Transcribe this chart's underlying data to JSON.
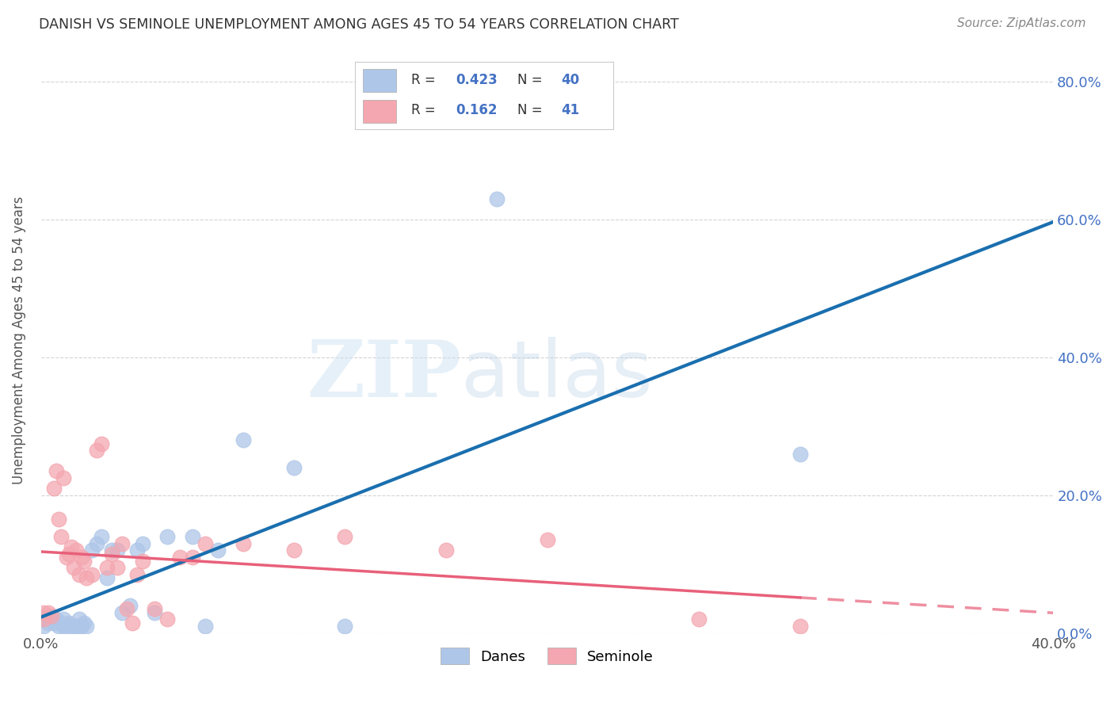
{
  "title": "DANISH VS SEMINOLE UNEMPLOYMENT AMONG AGES 45 TO 54 YEARS CORRELATION CHART",
  "source": "Source: ZipAtlas.com",
  "ylabel": "Unemployment Among Ages 45 to 54 years",
  "xlim": [
    0.0,
    0.4
  ],
  "ylim": [
    0.0,
    0.85
  ],
  "xticks": [
    0.0,
    0.05,
    0.1,
    0.15,
    0.2,
    0.25,
    0.3,
    0.35,
    0.4
  ],
  "yticks": [
    0.0,
    0.2,
    0.4,
    0.6,
    0.8
  ],
  "ytick_labels_right": [
    "0.0%",
    "20.0%",
    "40.0%",
    "60.0%",
    "80.0%"
  ],
  "xtick_labels": [
    "0.0%",
    "",
    "",
    "",
    "",
    "",
    "",
    "",
    "40.0%"
  ],
  "danes_R": 0.423,
  "danes_N": 40,
  "seminole_R": 0.162,
  "seminole_N": 41,
  "danes_color": "#aec6e8",
  "danes_line_color": "#1a6faf",
  "seminole_color": "#f4a7b0",
  "seminole_line_color": "#e8607a",
  "danes_scatter_x": [
    0.001,
    0.001,
    0.003,
    0.004,
    0.005,
    0.006,
    0.007,
    0.008,
    0.009,
    0.009,
    0.01,
    0.011,
    0.012,
    0.013,
    0.014,
    0.015,
    0.015,
    0.016,
    0.017,
    0.018,
    0.02,
    0.022,
    0.024,
    0.026,
    0.028,
    0.03,
    0.032,
    0.035,
    0.038,
    0.04,
    0.045,
    0.05,
    0.06,
    0.065,
    0.07,
    0.08,
    0.1,
    0.12,
    0.18,
    0.3
  ],
  "danes_scatter_y": [
    0.01,
    0.02,
    0.015,
    0.02,
    0.015,
    0.02,
    0.01,
    0.015,
    0.01,
    0.02,
    0.01,
    0.015,
    0.01,
    0.01,
    0.01,
    0.01,
    0.02,
    0.01,
    0.015,
    0.01,
    0.12,
    0.13,
    0.14,
    0.08,
    0.12,
    0.12,
    0.03,
    0.04,
    0.12,
    0.13,
    0.03,
    0.14,
    0.14,
    0.01,
    0.12,
    0.28,
    0.24,
    0.01,
    0.63,
    0.26
  ],
  "seminole_scatter_x": [
    0.001,
    0.001,
    0.003,
    0.004,
    0.005,
    0.006,
    0.007,
    0.008,
    0.009,
    0.01,
    0.011,
    0.012,
    0.013,
    0.014,
    0.015,
    0.016,
    0.017,
    0.018,
    0.02,
    0.022,
    0.024,
    0.026,
    0.028,
    0.03,
    0.032,
    0.034,
    0.036,
    0.038,
    0.04,
    0.045,
    0.05,
    0.055,
    0.06,
    0.065,
    0.08,
    0.1,
    0.12,
    0.16,
    0.2,
    0.26,
    0.3
  ],
  "seminole_scatter_y": [
    0.02,
    0.03,
    0.03,
    0.025,
    0.21,
    0.235,
    0.165,
    0.14,
    0.225,
    0.11,
    0.115,
    0.125,
    0.095,
    0.12,
    0.085,
    0.11,
    0.105,
    0.08,
    0.085,
    0.265,
    0.275,
    0.095,
    0.115,
    0.095,
    0.13,
    0.035,
    0.015,
    0.085,
    0.105,
    0.035,
    0.02,
    0.11,
    0.11,
    0.13,
    0.13,
    0.12,
    0.14,
    0.12,
    0.135,
    0.02,
    0.01
  ],
  "watermark_zip": "ZIP",
  "watermark_atlas": "atlas",
  "background_color": "#ffffff",
  "grid_color": "#d0d0d0",
  "title_color": "#333333"
}
